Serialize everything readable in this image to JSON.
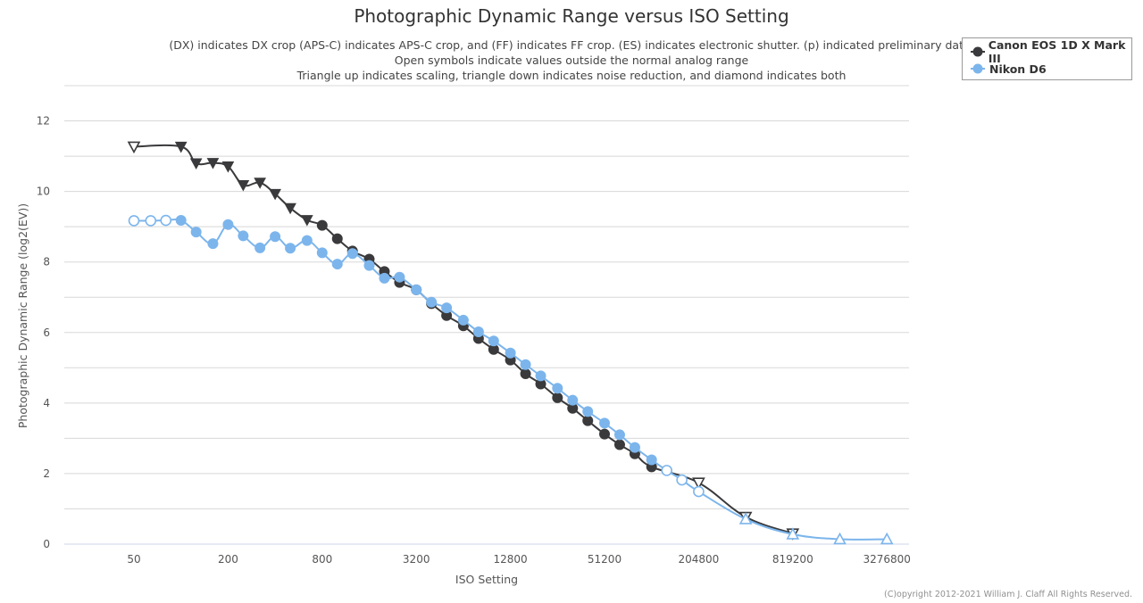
{
  "chart_data": {
    "type": "line",
    "title": "Photographic Dynamic Range versus ISO Setting",
    "subtitle": [
      "(DX) indicates DX crop (APS-C) indicates APS-C crop, and (FF) indicates FF crop. (ES) indicates electronic shutter. (p) indicated preliminary data.",
      "Open symbols indicate values outside the normal analog range",
      "Triangle up indicates scaling, triangle down indicates noise reduction, and diamond indicates both"
    ],
    "xlabel": "ISO Setting",
    "ylabel": "Photographic Dynamic Range (log2(EV))",
    "x_scale": "log2",
    "x_ticks": [
      "50",
      "200",
      "800",
      "3200",
      "12800",
      "51200",
      "204800",
      "819200",
      "3276800"
    ],
    "y_ticks": [
      0,
      2,
      4,
      6,
      8,
      10,
      12
    ],
    "ylim": [
      0,
      13
    ],
    "grid": true,
    "legend_position": "top-right",
    "series": [
      {
        "name": "Canon EOS 1D X Mark III",
        "color": "#3a3a3c",
        "points": [
          {
            "iso": 50,
            "dr": 11.27,
            "marker": "triangle-down-open"
          },
          {
            "iso": 100,
            "dr": 11.27,
            "marker": "triangle-down"
          },
          {
            "iso": 125,
            "dr": 10.8,
            "marker": "triangle-down"
          },
          {
            "iso": 160,
            "dr": 10.81,
            "marker": "triangle-down"
          },
          {
            "iso": 200,
            "dr": 10.71,
            "marker": "triangle-down"
          },
          {
            "iso": 250,
            "dr": 10.18,
            "marker": "triangle-down"
          },
          {
            "iso": 320,
            "dr": 10.25,
            "marker": "triangle-down"
          },
          {
            "iso": 400,
            "dr": 9.93,
            "marker": "triangle-down"
          },
          {
            "iso": 500,
            "dr": 9.53,
            "marker": "triangle-down"
          },
          {
            "iso": 640,
            "dr": 9.19,
            "marker": "triangle-down"
          },
          {
            "iso": 800,
            "dr": 9.04,
            "marker": "circle"
          },
          {
            "iso": 1000,
            "dr": 8.66,
            "marker": "circle"
          },
          {
            "iso": 1250,
            "dr": 8.31,
            "marker": "circle"
          },
          {
            "iso": 1600,
            "dr": 8.08,
            "marker": "circle"
          },
          {
            "iso": 2000,
            "dr": 7.73,
            "marker": "circle"
          },
          {
            "iso": 2500,
            "dr": 7.42,
            "marker": "circle"
          },
          {
            "iso": 3200,
            "dr": 7.21,
            "marker": "circle"
          },
          {
            "iso": 4000,
            "dr": 6.82,
            "marker": "circle"
          },
          {
            "iso": 5000,
            "dr": 6.48,
            "marker": "circle"
          },
          {
            "iso": 6400,
            "dr": 6.19,
            "marker": "circle"
          },
          {
            "iso": 8000,
            "dr": 5.83,
            "marker": "circle"
          },
          {
            "iso": 10000,
            "dr": 5.52,
            "marker": "circle"
          },
          {
            "iso": 12800,
            "dr": 5.22,
            "marker": "circle"
          },
          {
            "iso": 16000,
            "dr": 4.83,
            "marker": "circle"
          },
          {
            "iso": 20000,
            "dr": 4.54,
            "marker": "circle"
          },
          {
            "iso": 25600,
            "dr": 4.15,
            "marker": "circle"
          },
          {
            "iso": 32000,
            "dr": 3.85,
            "marker": "circle"
          },
          {
            "iso": 40000,
            "dr": 3.5,
            "marker": "circle"
          },
          {
            "iso": 51200,
            "dr": 3.12,
            "marker": "circle"
          },
          {
            "iso": 64000,
            "dr": 2.82,
            "marker": "circle"
          },
          {
            "iso": 80000,
            "dr": 2.56,
            "marker": "circle"
          },
          {
            "iso": 102400,
            "dr": 2.19,
            "marker": "circle"
          },
          {
            "iso": 204800,
            "dr": 1.74,
            "marker": "triangle-down-open"
          },
          {
            "iso": 409600,
            "dr": 0.77,
            "marker": "triangle-down-open"
          },
          {
            "iso": 819200,
            "dr": 0.3,
            "marker": "triangle-down-open"
          }
        ]
      },
      {
        "name": "Nikon D6",
        "color": "#7cb5ec",
        "points": [
          {
            "iso": 50,
            "dr": 9.17,
            "marker": "circle-open"
          },
          {
            "iso": 64,
            "dr": 9.17,
            "marker": "circle-open"
          },
          {
            "iso": 80,
            "dr": 9.18,
            "marker": "circle-open"
          },
          {
            "iso": 100,
            "dr": 9.18,
            "marker": "circle"
          },
          {
            "iso": 125,
            "dr": 8.85,
            "marker": "circle"
          },
          {
            "iso": 160,
            "dr": 8.52,
            "marker": "circle"
          },
          {
            "iso": 200,
            "dr": 9.06,
            "marker": "circle"
          },
          {
            "iso": 250,
            "dr": 8.74,
            "marker": "circle"
          },
          {
            "iso": 320,
            "dr": 8.4,
            "marker": "circle"
          },
          {
            "iso": 400,
            "dr": 8.72,
            "marker": "circle"
          },
          {
            "iso": 500,
            "dr": 8.39,
            "marker": "circle"
          },
          {
            "iso": 640,
            "dr": 8.61,
            "marker": "circle"
          },
          {
            "iso": 800,
            "dr": 8.26,
            "marker": "circle"
          },
          {
            "iso": 1000,
            "dr": 7.94,
            "marker": "circle"
          },
          {
            "iso": 1250,
            "dr": 8.24,
            "marker": "circle"
          },
          {
            "iso": 1600,
            "dr": 7.9,
            "marker": "circle"
          },
          {
            "iso": 2000,
            "dr": 7.54,
            "marker": "circle"
          },
          {
            "iso": 2500,
            "dr": 7.57,
            "marker": "circle"
          },
          {
            "iso": 3200,
            "dr": 7.21,
            "marker": "circle"
          },
          {
            "iso": 4000,
            "dr": 6.86,
            "marker": "circle"
          },
          {
            "iso": 5000,
            "dr": 6.7,
            "marker": "circle"
          },
          {
            "iso": 6400,
            "dr": 6.35,
            "marker": "circle"
          },
          {
            "iso": 8000,
            "dr": 6.02,
            "marker": "circle"
          },
          {
            "iso": 10000,
            "dr": 5.76,
            "marker": "circle"
          },
          {
            "iso": 12800,
            "dr": 5.42,
            "marker": "circle"
          },
          {
            "iso": 16000,
            "dr": 5.09,
            "marker": "circle"
          },
          {
            "iso": 20000,
            "dr": 4.77,
            "marker": "circle"
          },
          {
            "iso": 25600,
            "dr": 4.42,
            "marker": "circle"
          },
          {
            "iso": 32000,
            "dr": 4.08,
            "marker": "circle"
          },
          {
            "iso": 40000,
            "dr": 3.76,
            "marker": "circle"
          },
          {
            "iso": 51200,
            "dr": 3.43,
            "marker": "circle"
          },
          {
            "iso": 64000,
            "dr": 3.1,
            "marker": "circle"
          },
          {
            "iso": 80000,
            "dr": 2.74,
            "marker": "circle"
          },
          {
            "iso": 102400,
            "dr": 2.39,
            "marker": "circle"
          },
          {
            "iso": 128000,
            "dr": 2.09,
            "marker": "circle-open"
          },
          {
            "iso": 160000,
            "dr": 1.82,
            "marker": "circle-open"
          },
          {
            "iso": 204800,
            "dr": 1.49,
            "marker": "circle-open"
          },
          {
            "iso": 409600,
            "dr": 0.71,
            "marker": "triangle-up-open"
          },
          {
            "iso": 819200,
            "dr": 0.28,
            "marker": "triangle-up-open"
          },
          {
            "iso": 1638400,
            "dr": 0.14,
            "marker": "triangle-up-open"
          },
          {
            "iso": 3276800,
            "dr": 0.14,
            "marker": "triangle-up-open"
          }
        ]
      }
    ]
  },
  "legend": {
    "items": [
      "Canon EOS 1D X Mark III",
      "Nikon D6"
    ]
  },
  "credits": "(C)opyright 2012-2021 William J. Claff All Rights Reserved."
}
